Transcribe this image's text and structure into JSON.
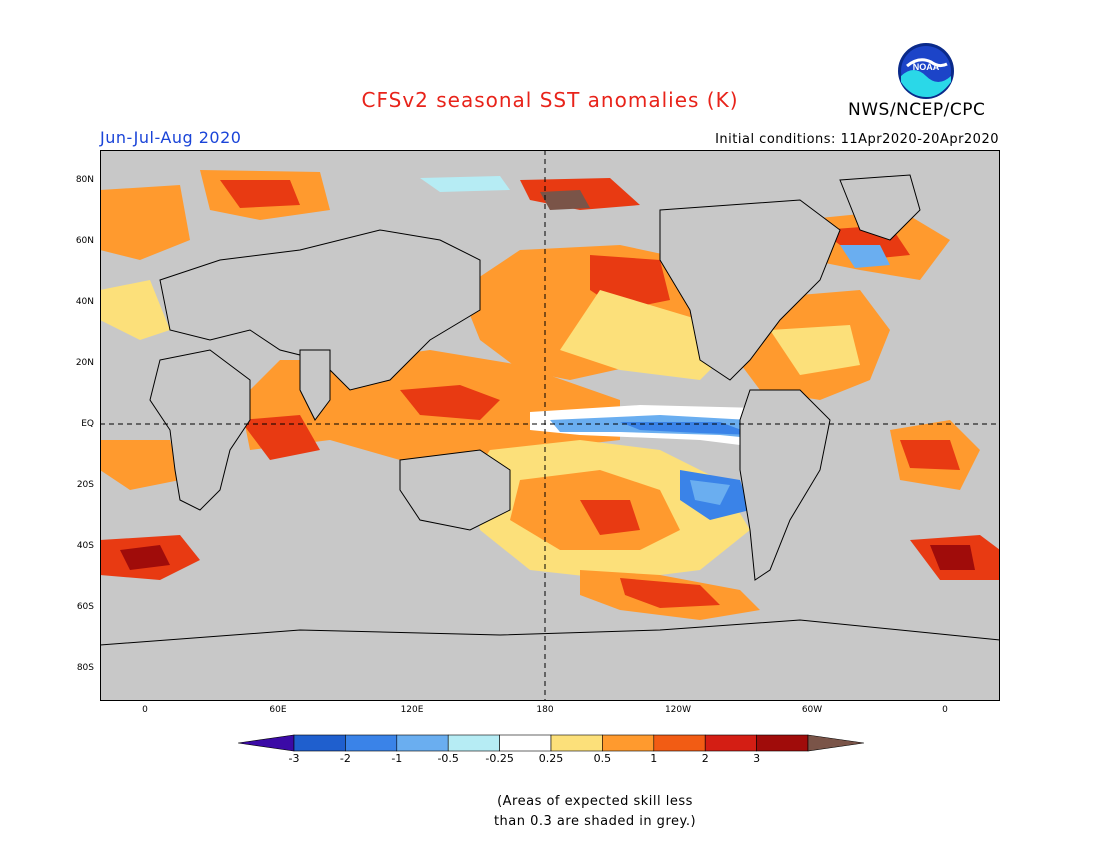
{
  "header": {
    "title": "CFSv2 seasonal SST anomalies (K)",
    "org": "NWS/NCEP/CPC",
    "season": "Jun-Jul-Aug 2020",
    "initial_conditions": "Initial conditions: 11Apr2020-20Apr2020",
    "logo_text": "NOAA"
  },
  "axes": {
    "lat_labels": [
      "80N",
      "60N",
      "40N",
      "20N",
      "EQ",
      "20S",
      "40S",
      "60S",
      "80S"
    ],
    "lon_labels": [
      "0",
      "60E",
      "120E",
      "180",
      "120W",
      "60W",
      "0"
    ]
  },
  "colorbar": {
    "labels": [
      "-3",
      "-2",
      "-1",
      "-0.5",
      "-0.25",
      "0.25",
      "0.5",
      "1",
      "2",
      "3"
    ],
    "colors": [
      "#3b0aa6",
      "#1f5fce",
      "#3a83e8",
      "#6aaef0",
      "#b6ecf4",
      "#ffffff",
      "#fce07a",
      "#ff9a2e",
      "#f25c14",
      "#d41e14",
      "#a00c0a",
      "#7a5448"
    ]
  },
  "note": {
    "line1": "(Areas of expected skill less",
    "line2": "than 0.3 are shaded in grey.)"
  },
  "colors": {
    "land": "#c8c8c8",
    "title": "#e8231a",
    "season": "#1a44d8"
  }
}
